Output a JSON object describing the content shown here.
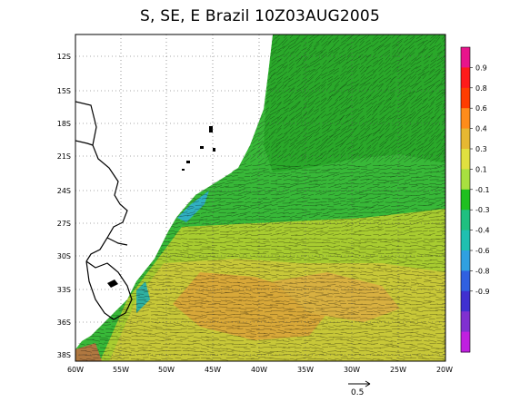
{
  "title": "S, SE, E Brazil 10Z03AUG2005",
  "lat_labels": [
    "12S",
    "15S",
    "18S",
    "21S",
    "24S",
    "27S",
    "30S",
    "33S",
    "36S",
    "38S"
  ],
  "lon_labels": [
    "60W",
    "55W",
    "50W",
    "45W",
    "40W",
    "35W",
    "30W",
    "25W",
    "20W"
  ],
  "colorbar": {
    "labels": [
      "0.9",
      "0.8",
      "0.6",
      "0.4",
      "0.3",
      "0.1",
      "-0.1",
      "-0.3",
      "-0.4",
      "-0.6",
      "-0.8",
      "-0.9"
    ],
    "colors": [
      "#e8158c",
      "#ff1a1a",
      "#ff3d00",
      "#ff8c1a",
      "#e6b832",
      "#e0e040",
      "#a8e040",
      "#20c020",
      "#20c080",
      "#20c0b0",
      "#30a0e0",
      "#3060e0",
      "#4030d0",
      "#8030d0",
      "#c020e0"
    ]
  },
  "reference_vector": {
    "value": "0.5"
  }
}
